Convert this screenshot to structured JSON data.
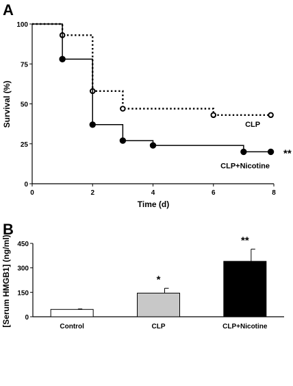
{
  "chart_data": [
    {
      "panel_label": "A",
      "type": "line",
      "step": true,
      "xlabel": "Time (d)",
      "ylabel": "Survival (%)",
      "xlim": [
        0,
        8
      ],
      "ylim": [
        0,
        100
      ],
      "xticks": [
        "0",
        "2",
        "4",
        "6",
        "8"
      ],
      "yticks": [
        "0",
        "25",
        "50",
        "75",
        "100"
      ],
      "series": [
        {
          "name": "CLP",
          "line_style": "dotted",
          "marker": "open-circle",
          "color": "#000000",
          "x": [
            0,
            1,
            2,
            3,
            6,
            8
          ],
          "y": [
            100,
            93,
            58,
            47,
            43,
            43
          ],
          "markers_x": [
            1,
            2,
            3,
            6,
            7.9
          ],
          "markers_y": [
            93,
            58,
            47,
            43,
            43
          ]
        },
        {
          "name": "CLP+Nicotine",
          "line_style": "solid",
          "marker": "filled-circle",
          "color": "#000000",
          "x": [
            0,
            1,
            2,
            3,
            4,
            7,
            8
          ],
          "y": [
            100,
            78,
            37,
            27,
            24,
            20,
            20
          ],
          "markers_x": [
            1,
            2,
            3,
            4,
            7,
            7.9
          ],
          "markers_y": [
            78,
            37,
            27,
            24,
            20,
            20
          ]
        }
      ],
      "annotations": [
        {
          "text": "CLP",
          "series": "CLP"
        },
        {
          "text": "CLP+Nicotine",
          "series": "CLP+Nicotine"
        },
        {
          "text": "**",
          "series": "CLP+Nicotine"
        }
      ]
    },
    {
      "panel_label": "B",
      "type": "bar",
      "ylabel": "[Serum HMGB1] (ng/ml)",
      "ylim": [
        0,
        450
      ],
      "yticks": [
        "0",
        "150",
        "300",
        "450"
      ],
      "categories": [
        "Control",
        "CLP",
        "CLP+Nicotine"
      ],
      "values": [
        45,
        145,
        340
      ],
      "errors": [
        3,
        30,
        75
      ],
      "bar_colors": [
        "#ffffff",
        "#c8c8c8",
        "#000000"
      ],
      "significance": [
        "",
        "*",
        "**"
      ]
    }
  ]
}
